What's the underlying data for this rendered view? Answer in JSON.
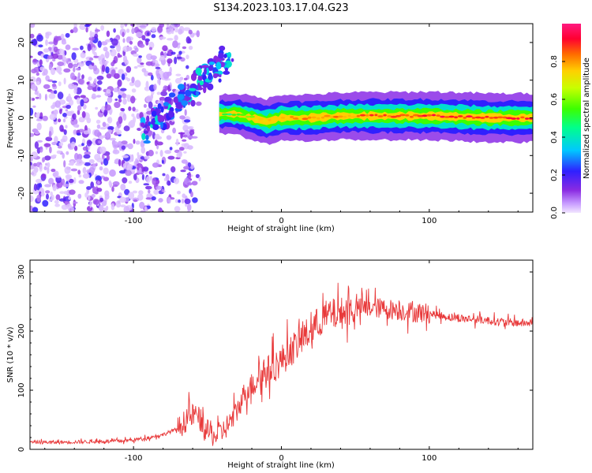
{
  "colors": {
    "snr_line": "#e8393a",
    "ridge": "#f4365a",
    "background": "#ffffff",
    "frame": "#000000"
  },
  "chart_data": [
    {
      "type": "heatmap",
      "title": "S134.2023.103.17.04.G23",
      "xlabel": "Height of straight line (km)",
      "ylabel": "Frequency (Hz)",
      "xlim": [
        -170,
        170
      ],
      "ylim": [
        -25,
        25
      ],
      "xticks": [
        -100,
        0,
        100
      ],
      "yticks": [
        -20,
        -10,
        0,
        10,
        20
      ],
      "colorbar": {
        "label": "Normalized spectral amplitude",
        "range": [
          0.0,
          1.0
        ],
        "ticks": [
          "0.0",
          "0.2",
          "0.4",
          "0.6",
          "0.8"
        ],
        "colormap": "hsv (purple → blue → cyan → green → yellow → orange → red → magenta)"
      },
      "ridge": {
        "description": "strong signal band near 0 Hz from about -40 km to 170 km; diagonal feature from about -90 km,-5 Hz to -35 km,+17 Hz; scattered noise below -60 km",
        "x": [
          -40,
          -30,
          -20,
          -10,
          0,
          20,
          40,
          60,
          80,
          100,
          120,
          140,
          160,
          170
        ],
        "y": [
          1,
          1,
          0,
          -1,
          0,
          0,
          0.5,
          0.5,
          0.5,
          0.5,
          0.3,
          0,
          0,
          0
        ],
        "amplitude": [
          0.5,
          0.6,
          0.7,
          0.8,
          0.85,
          0.85,
          0.85,
          0.9,
          0.9,
          0.95,
          0.95,
          0.95,
          0.95,
          0.95
        ]
      }
    },
    {
      "type": "line",
      "title": "",
      "xlabel": "Height of straight line (km)",
      "ylabel": "SNR (10 * v/v)",
      "xlim": [
        -170,
        170
      ],
      "ylim": [
        0,
        320
      ],
      "xticks": [
        -100,
        0,
        100
      ],
      "yticks": [
        0,
        100,
        200,
        300
      ],
      "series": [
        {
          "x": [
            -170,
            -150,
            -130,
            -110,
            -100,
            -90,
            -80,
            -70,
            -62,
            -58,
            -55,
            -50,
            -45,
            -40,
            -35,
            -30,
            -25,
            -20,
            -15,
            -10,
            -5,
            0,
            5,
            10,
            15,
            20,
            25,
            30,
            35,
            40,
            45,
            50,
            60,
            70,
            80,
            90,
            100,
            110,
            120,
            130,
            140,
            150,
            160,
            170
          ],
          "values": [
            12,
            12,
            13,
            14,
            16,
            20,
            25,
            35,
            55,
            60,
            50,
            30,
            22,
            30,
            45,
            65,
            95,
            110,
            125,
            130,
            140,
            150,
            165,
            175,
            190,
            200,
            215,
            225,
            228,
            230,
            235,
            238,
            240,
            238,
            235,
            232,
            230,
            225,
            222,
            220,
            218,
            215,
            214,
            213
          ]
        }
      ]
    }
  ]
}
